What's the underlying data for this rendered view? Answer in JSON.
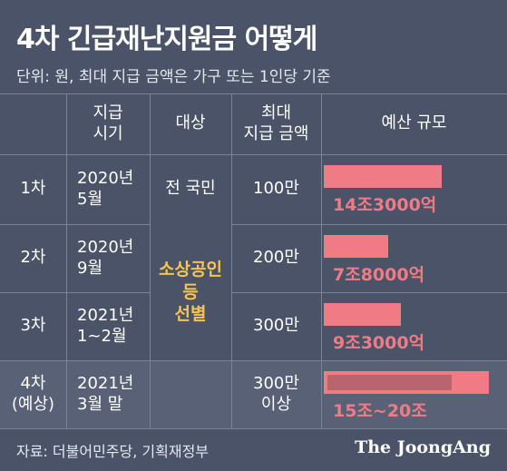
{
  "title": "4차 긴급재난지원금 어떻게",
  "subtitle": "단위: 원, 최대 지급 금액은 가구 또는 1인당 기준",
  "headers": {
    "timing": [
      "지급",
      "시기"
    ],
    "target": "대상",
    "max_amount": [
      "최대",
      "지급 금액"
    ],
    "budget": "예산 규모"
  },
  "rows": [
    {
      "label": [
        "1차"
      ],
      "timing": [
        "2020년",
        "5월"
      ],
      "target": "전 국민",
      "amount": [
        "100만"
      ],
      "budget_label": "14조3000억"
    },
    {
      "label": [
        "2차"
      ],
      "timing": [
        "2020년",
        "9월"
      ],
      "amount": [
        "200만"
      ],
      "budget_label": "7조8000억"
    },
    {
      "label": [
        "3차"
      ],
      "timing": [
        "2021년",
        "1~2월"
      ],
      "amount": [
        "300만"
      ],
      "budget_label": "9조3000억"
    },
    {
      "label": [
        "4차",
        "(예상)"
      ],
      "timing": [
        "2021년",
        "3월 말"
      ],
      "amount": [
        "300만",
        "이상"
      ],
      "budget_label": "15조~20조"
    }
  ],
  "selective_target": [
    "소상공인",
    "등",
    "선별"
  ],
  "source": "자료: 더불어민주당, 기획재정부",
  "logo": "The JoongAng",
  "colors": {
    "background": "#4a5368",
    "bar": "#f07b85",
    "bar_range_inner": "#b9656e",
    "highlight_text": "#f5c451"
  },
  "chart_data": {
    "type": "bar",
    "categories": [
      "1차",
      "2차",
      "3차",
      "4차 (예상)"
    ],
    "values_trillion_won": [
      14.3,
      7.8,
      9.3,
      [
        15,
        20
      ]
    ],
    "value_labels": [
      "14조3000억",
      "7조8000억",
      "9조3000억",
      "15조~20조"
    ]
  }
}
